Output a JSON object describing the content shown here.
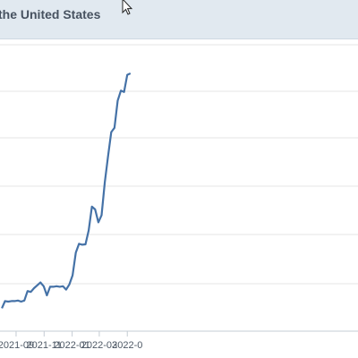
{
  "header": {
    "title": "the United States"
  },
  "colors": {
    "header_bg": "#e1e9f0",
    "line": "#4572a7",
    "grid": "#e6e6e6"
  },
  "chart_data": {
    "type": "line",
    "title": "the United States",
    "xlabel": "",
    "ylabel": "",
    "x_tick_labels": [
      "2021-09",
      "2021-11",
      "2022-01",
      "2022-03",
      "2022-0"
    ],
    "grid": "horizontal",
    "legend": "none",
    "series": [
      {
        "x": [
          "2021-08-01",
          "2021-08-08",
          "2021-08-15",
          "2021-08-22",
          "2021-08-29",
          "2021-09-05",
          "2021-09-12",
          "2021-09-19",
          "2021-09-26",
          "2021-10-03",
          "2021-10-10",
          "2021-10-17",
          "2021-10-24",
          "2021-10-31",
          "2021-11-07",
          "2021-11-14",
          "2021-11-21",
          "2021-11-28",
          "2021-12-05",
          "2021-12-12",
          "2021-12-19",
          "2021-12-26",
          "2022-01-02",
          "2022-01-09",
          "2022-01-16",
          "2022-01-23",
          "2022-01-30",
          "2022-02-06",
          "2022-02-13",
          "2022-02-20",
          "2022-02-27",
          "2022-03-06",
          "2022-03-13",
          "2022-03-20",
          "2022-03-27",
          "2022-04-03",
          "2022-04-10",
          "2022-04-17",
          "2022-04-24",
          "2022-05-01",
          "2022-05-08"
        ],
        "values": [
          8,
          10.5,
          10.3,
          10.5,
          10.5,
          10.7,
          10.3,
          10.7,
          14,
          13.7,
          15,
          16,
          17,
          15.7,
          12.5,
          15.5,
          15.5,
          15.7,
          15.5,
          15.7,
          14.5,
          16.3,
          19.5,
          27.4,
          30.5,
          30.2,
          30.3,
          35.2,
          43.5,
          42.5,
          38,
          40.5,
          52,
          61,
          69.5,
          71,
          80.5,
          84,
          83.5,
          89.5,
          90
        ]
      }
    ]
  }
}
